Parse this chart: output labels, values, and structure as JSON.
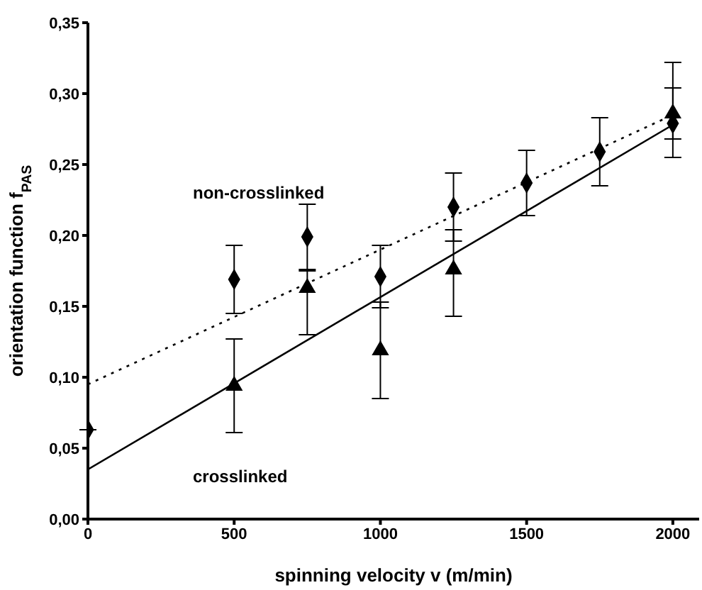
{
  "chart_data": {
    "type": "scatter",
    "xlabel": "spinning velocity  v  (m/min)",
    "ylabel": "orientation function  f$_{PAS}$",
    "xlim": [
      0,
      2090
    ],
    "xticks": [
      0,
      500,
      1000,
      1500,
      2000
    ],
    "ylim": [
      0,
      0.35
    ],
    "yticks": [
      {
        "value": 0,
        "label": "0,00"
      },
      {
        "value": 0.05,
        "label": "0,05"
      },
      {
        "value": 0.1,
        "label": "0,10"
      },
      {
        "value": 0.15,
        "label": "0,15"
      },
      {
        "value": 0.2,
        "label": "0,20"
      },
      {
        "value": 0.25,
        "label": "0,25"
      },
      {
        "value": 0.3,
        "label": "0,30"
      },
      {
        "value": 0.35,
        "label": "0,35"
      }
    ],
    "series": [
      {
        "marker": "diamond",
        "color": "#000000",
        "x": [
          0,
          500,
          750,
          1000,
          1250,
          1500,
          1750,
          2000
        ],
        "values": [
          0.063,
          0.169,
          0.199,
          0.171,
          0.22,
          0.237,
          0.259,
          0.279
        ],
        "errors": [
          null,
          0.024,
          0.023,
          0.022,
          0.024,
          0.023,
          0.024,
          [
            0.255,
            0.322
          ]
        ]
      },
      {
        "marker": "triangle",
        "color": "#000000",
        "x": [
          500,
          750,
          1000,
          1250,
          2000
        ],
        "values": [
          0.094,
          0.163,
          0.119,
          0.176,
          0.286
        ],
        "errors": [
          0.033,
          [
            0.13,
            0.175
          ],
          0.034,
          [
            0.143,
            0.204
          ],
          [
            0.268,
            0.304
          ]
        ]
      },
      {
        "type": "line",
        "line_style": "dotted",
        "marker": "none",
        "color": "#000000",
        "x": [
          0,
          2000
        ],
        "values": [
          0.095,
          0.285
        ]
      },
      {
        "type": "line",
        "line_style": "solid",
        "marker": "none",
        "color": "#000000",
        "x": [
          0,
          2000
        ],
        "values": [
          0.035,
          0.278
        ]
      }
    ],
    "annotations": [
      "non-crosslinked",
      "crosslinked"
    ]
  }
}
